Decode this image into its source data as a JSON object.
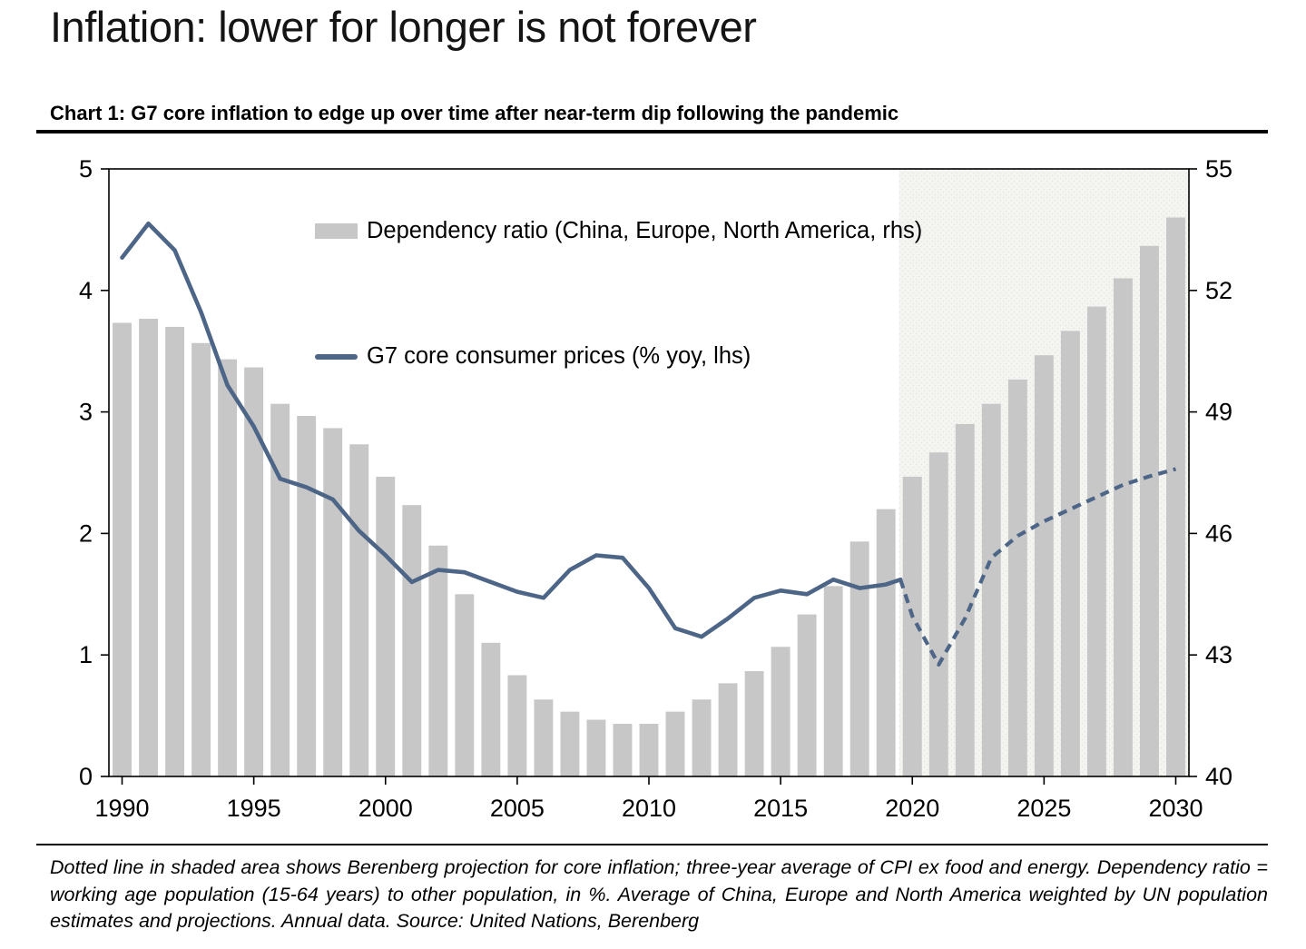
{
  "page": {
    "title": "Inflation: lower for longer is not forever",
    "chart_heading": "Chart 1: G7 core inflation to edge up over time after near-term dip following the pandemic",
    "footnote": "Dotted line in shaded area shows Berenberg projection for core inflation; three-year average of CPI ex food and energy. Dependency ratio = working age population (15-64 years) to other population, in %. Average of China, Europe and North America weighted by UN population estimates and projections. Annual data. Source: United Nations, Berenberg"
  },
  "chart_data": {
    "type": "bar",
    "title": "Chart 1: G7 core inflation to edge up over time after near-term dip following the pandemic",
    "years": [
      1990,
      1991,
      1992,
      1993,
      1994,
      1995,
      1996,
      1997,
      1998,
      1999,
      2000,
      2001,
      2002,
      2003,
      2004,
      2005,
      2006,
      2007,
      2008,
      2009,
      2010,
      2011,
      2012,
      2013,
      2014,
      2015,
      2016,
      2017,
      2018,
      2019,
      2020,
      2021,
      2022,
      2023,
      2024,
      2025,
      2026,
      2027,
      2028,
      2029,
      2030
    ],
    "series": [
      {
        "name": "Dependency ratio (China, Europe, North America, rhs)",
        "type": "bar",
        "axis": "right",
        "values": [
          51.2,
          51.3,
          51.1,
          50.7,
          50.3,
          50.1,
          49.2,
          48.9,
          48.6,
          48.2,
          47.4,
          46.7,
          45.7,
          44.5,
          43.3,
          42.5,
          41.9,
          41.6,
          41.4,
          41.3,
          41.3,
          41.6,
          41.9,
          42.3,
          42.6,
          43.2,
          44.0,
          44.7,
          45.8,
          46.6,
          47.4,
          48.0,
          48.7,
          49.2,
          49.8,
          50.4,
          51.0,
          51.6,
          52.3,
          53.1,
          53.8
        ]
      },
      {
        "name": "G7 core consumer prices (% yoy, lhs)",
        "type": "line",
        "axis": "left",
        "solid": {
          "years": [
            1990,
            1991,
            1992,
            1993,
            1994,
            1995,
            1996,
            1997,
            1998,
            1999,
            2000,
            2001,
            2002,
            2003,
            2004,
            2005,
            2006,
            2007,
            2008,
            2009,
            2010,
            2011,
            2012,
            2013,
            2014,
            2015,
            2016,
            2017,
            2018,
            2019,
            2019.55
          ],
          "values": [
            4.27,
            4.55,
            4.33,
            3.82,
            3.22,
            2.88,
            2.45,
            2.38,
            2.28,
            2.02,
            1.82,
            1.6,
            1.7,
            1.68,
            1.6,
            1.52,
            1.47,
            1.7,
            1.82,
            1.8,
            1.55,
            1.22,
            1.15,
            1.3,
            1.47,
            1.53,
            1.5,
            1.62,
            1.55,
            1.58,
            1.62
          ]
        },
        "projection": {
          "years": [
            2019.55,
            2020,
            2021,
            2022,
            2023,
            2024,
            2025,
            2026,
            2027,
            2028,
            2029,
            2030
          ],
          "values": [
            1.62,
            1.32,
            0.92,
            1.3,
            1.8,
            1.98,
            2.1,
            2.2,
            2.3,
            2.4,
            2.47,
            2.53
          ],
          "note": "Berenberg projection (dotted line in shaded area)"
        }
      }
    ],
    "left_axis": {
      "min": 0,
      "max": 5,
      "ticks": [
        0,
        1,
        2,
        3,
        4,
        5
      ]
    },
    "right_axis": {
      "min": 40,
      "max": 55,
      "ticks": [
        40,
        43,
        46,
        49,
        52,
        55
      ]
    },
    "x_ticks": [
      1990,
      1995,
      2000,
      2005,
      2010,
      2015,
      2020,
      2025,
      2030
    ],
    "shaded_region": {
      "from_year": 2020,
      "meaning": "projection period"
    },
    "legend_position": "inside-top-left",
    "grid": "off",
    "colors": {
      "bar": "#c7c7c7",
      "line": "#4d6586",
      "shade_base": "#f4f4f1",
      "shade_dot": "#e4e4e0",
      "axis": "#000000"
    }
  }
}
